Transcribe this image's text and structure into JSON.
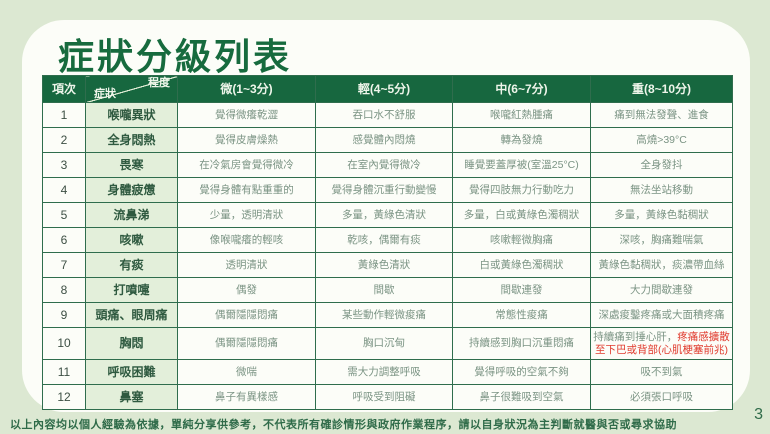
{
  "page": {
    "title": "症狀分級列表",
    "footer": "以上內容均以個人經驗為依據，單純分享供參考，不代表所有確診情形與政府作業程序，請以自身狀況為主判斷就醫與否或尋求協助",
    "page_number": "3"
  },
  "colors": {
    "page_bg": "#dce8d2",
    "card_bg": "#fcfdf8",
    "header_bg": "#17673f",
    "header_text": "#eef5ea",
    "title_text": "#176b3e",
    "symptom_col_bg": "#e3efda",
    "symptom_text": "#2f5a40",
    "cell_text": "#7b9484",
    "table_border": "#2f6d4d",
    "alert_red": "#e03a2d",
    "footer_text": "#2f6b49"
  },
  "table": {
    "corner": {
      "item": "項次",
      "symptom": "症狀",
      "degree": "程度"
    },
    "levels": [
      "微(1~3分)",
      "輕(4~5分)",
      "中(6~7分)",
      "重(8~10分)"
    ],
    "rows": [
      {
        "no": "1",
        "symptom": "喉嚨異狀",
        "cells": [
          "覺得微癢乾澀",
          "吞口水不舒服",
          "喉嚨紅熱腫痛",
          "痛到無法發聲、進食"
        ]
      },
      {
        "no": "2",
        "symptom": "全身悶熱",
        "cells": [
          "覺得皮膚燥熱",
          "感覺體內悶燒",
          "轉為發燒",
          "高燒>39°C"
        ]
      },
      {
        "no": "3",
        "symptom": "畏寒",
        "cells": [
          "在冷氣房會覺得微冷",
          "在室內覺得微冷",
          "睡覺要蓋厚被(室溫25°C)",
          "全身發抖"
        ]
      },
      {
        "no": "4",
        "symptom": "身體疲憊",
        "cells": [
          "覺得身體有點重重的",
          "覺得身體沉重行動變慢",
          "覺得四肢無力行動吃力",
          "無法坐站移動"
        ]
      },
      {
        "no": "5",
        "symptom": "流鼻涕",
        "cells": [
          "少量，透明清狀",
          "多量，黃綠色清狀",
          "多量，白或黃綠色濁稠狀",
          "多量，黃綠色黏稠狀"
        ]
      },
      {
        "no": "6",
        "symptom": "咳嗽",
        "cells": [
          "像喉嚨癢的輕咳",
          "乾咳，偶爾有痰",
          "咳嗽輕微胸痛",
          "深咳，胸痛難喘氣"
        ]
      },
      {
        "no": "7",
        "symptom": "有痰",
        "cells": [
          "透明清狀",
          "黃綠色清狀",
          "白或黃綠色濁稠狀",
          "黃綠色黏稠狀，痰濃帶血絲"
        ]
      },
      {
        "no": "8",
        "symptom": "打噴嚏",
        "cells": [
          "偶發",
          "間歇",
          "間歇連發",
          "大力間歇連發"
        ]
      },
      {
        "no": "9",
        "symptom": "頭痛、眼周痛",
        "cells": [
          "偶爾隱隱悶痛",
          "某些動作輕微痠痛",
          "常態性痠痛",
          "深處痠鑿疼痛或大面積疼痛"
        ]
      },
      {
        "no": "10",
        "symptom": "胸悶",
        "cells": [
          "偶爾隱隱悶痛",
          "胸口沉甸",
          "持續感到胸口沉重悶痛",
          {
            "prefix": "持續痛到捶心肝，",
            "red": "疼痛感擴散至下巴或背部(心肌梗塞前兆)"
          }
        ]
      },
      {
        "no": "11",
        "symptom": "呼吸困難",
        "cells": [
          "微喘",
          "需大力調整呼吸",
          "覺得呼吸的空氣不夠",
          "吸不到氣"
        ]
      },
      {
        "no": "12",
        "symptom": "鼻塞",
        "cells": [
          "鼻子有異樣感",
          "呼吸受到阻礙",
          "鼻子很難吸到空氣",
          "必須張口呼吸"
        ]
      }
    ]
  }
}
